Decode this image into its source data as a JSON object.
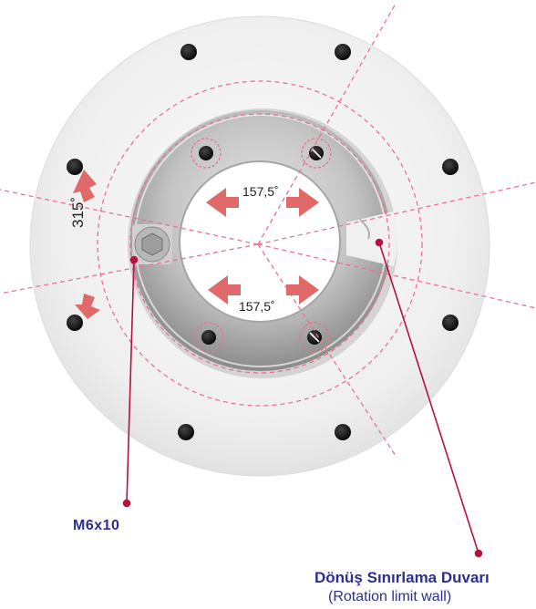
{
  "labels": {
    "bolt": "M6x10",
    "wall_title": "Dönüş Sınırlama Duvarı",
    "wall_subtitle": "(Rotation limit wall)",
    "angle_top": "157,5˚",
    "angle_bottom": "157,5˚",
    "angle_side": "315˚"
  },
  "colors": {
    "dashed_line": "#e8728e",
    "arrow": "#e06a6a",
    "leader": "#b5123e",
    "label_text": "#2c2f8f"
  },
  "icons": [
    "hex-bolt-icon",
    "rotation-arrow-icon"
  ]
}
